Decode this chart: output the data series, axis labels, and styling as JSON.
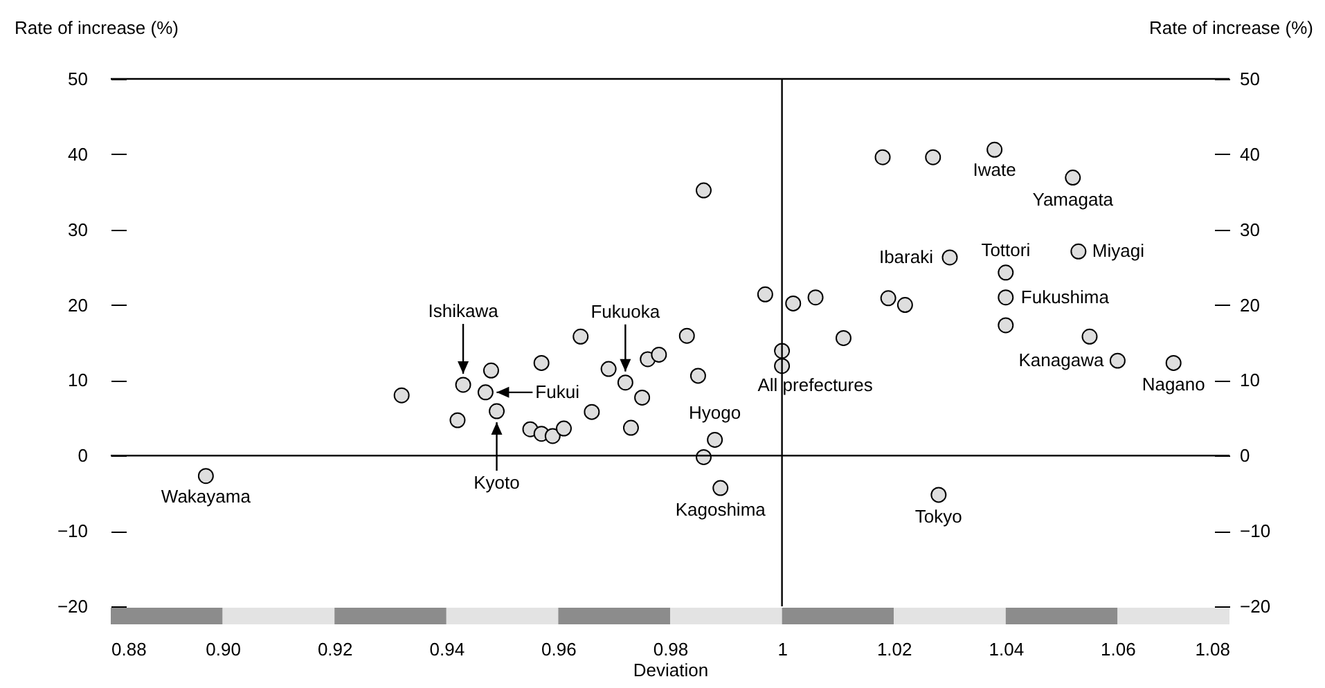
{
  "chart_data": {
    "type": "scatter",
    "xlabel": "Deviation",
    "ylabel": "Rate of increase (%)",
    "y2label": "Rate of increase (%)",
    "x": [
      0.897,
      0.932,
      0.942,
      0.943,
      0.947,
      0.948,
      0.949,
      0.955,
      0.957,
      0.957,
      0.959,
      0.961,
      0.964,
      0.966,
      0.969,
      0.972,
      0.973,
      0.975,
      0.976,
      0.978,
      0.983,
      0.985,
      0.986,
      0.986,
      0.988,
      0.989,
      0.997,
      1.0,
      1.0,
      1.002,
      1.006,
      1.011,
      1.018,
      1.019,
      1.022,
      1.027,
      1.028,
      1.03,
      1.038,
      1.04,
      1.04,
      1.04,
      1.052,
      1.053,
      1.055,
      1.06,
      1.07
    ],
    "values": [
      -2.7,
      8.0,
      4.7,
      9.4,
      8.4,
      11.3,
      5.9,
      3.5,
      2.9,
      12.3,
      2.6,
      3.6,
      15.8,
      5.8,
      11.5,
      9.7,
      3.7,
      7.7,
      12.8,
      13.4,
      15.9,
      10.6,
      35.2,
      -0.2,
      2.1,
      -4.3,
      21.4,
      13.9,
      11.9,
      20.2,
      21.0,
      15.6,
      39.6,
      20.9,
      20.0,
      39.6,
      -5.2,
      26.3,
      40.6,
      21.0,
      17.3,
      24.3,
      36.9,
      27.1,
      15.8,
      12.6,
      12.3
    ],
    "color": "#dedede",
    "marker": "circle",
    "xlim": [
      0.88,
      1.08
    ],
    "xticks": [
      0.88,
      {
        "value": 0.9,
        "label": "0.90"
      },
      0.92,
      0.94,
      0.96,
      0.98,
      1,
      1.02,
      1.04,
      1.06,
      1.08
    ],
    "ylim": [
      -20,
      50
    ],
    "yticks": [
      {
        "value": -20,
        "label": "−20"
      },
      {
        "value": -10,
        "label": "−10"
      },
      0,
      10,
      20,
      30,
      40,
      50
    ],
    "y2lim": [
      -20,
      50
    ],
    "y2ticks": [
      {
        "value": -20,
        "label": "−20"
      },
      {
        "value": -10,
        "label": "−10"
      },
      0,
      10,
      20,
      30,
      40,
      50
    ],
    "ref_lines": [
      {
        "axis": "x",
        "value": 1
      },
      {
        "axis": "y",
        "value": 0
      }
    ],
    "annotations": [
      {
        "text": "Wakayama",
        "x": 0.897,
        "y": -2.7
      },
      {
        "text": "Ishikawa",
        "x": 0.943,
        "y": 9.4
      },
      {
        "text": "Fukui",
        "x": 0.947,
        "y": 8.4
      },
      {
        "text": "Kyoto",
        "x": 0.949,
        "y": 5.9
      },
      {
        "text": "Fukuoka",
        "x": 0.972,
        "y": 9.7
      },
      {
        "text": "Hyogo",
        "x": 0.988,
        "y": 2.1
      },
      {
        "text": "Kagoshima",
        "x": 0.989,
        "y": -4.3
      },
      {
        "text": "All prefectures",
        "x": 1.0,
        "y": 11.9
      },
      {
        "text": "Iwate",
        "x": 1.038,
        "y": 40.6
      },
      {
        "text": "Yamagata",
        "x": 1.052,
        "y": 36.9
      },
      {
        "text": "Ibaraki",
        "x": 1.03,
        "y": 26.3
      },
      {
        "text": "Tottori",
        "x": 1.04,
        "y": 24.3
      },
      {
        "text": "Miyagi",
        "x": 1.053,
        "y": 27.1
      },
      {
        "text": "Fukushima",
        "x": 1.04,
        "y": 21.0
      },
      {
        "text": "Kanagawa",
        "x": 1.06,
        "y": 12.6
      },
      {
        "text": "Tokyo",
        "x": 1.028,
        "y": -5.2
      },
      {
        "text": "Nagano",
        "x": 1.07,
        "y": 12.3
      }
    ]
  }
}
